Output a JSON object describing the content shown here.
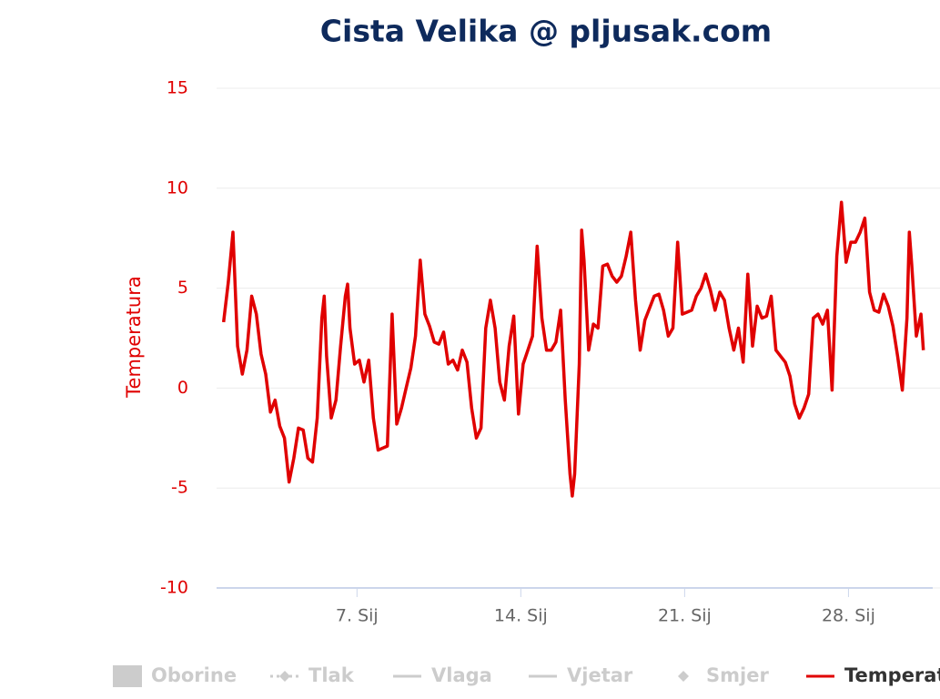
{
  "chart_data": {
    "type": "line",
    "title": "Cista Velika @ pljusak.com",
    "y_label": "Temperatura",
    "x": [
      1.3,
      1.5,
      1.7,
      1.9,
      2.1,
      2.3,
      2.5,
      2.7,
      2.9,
      3.1,
      3.3,
      3.5,
      3.7,
      3.9,
      4.1,
      4.3,
      4.5,
      4.7,
      4.9,
      5.1,
      5.3,
      5.5,
      5.6,
      5.7,
      5.9,
      6.1,
      6.3,
      6.5,
      6.6,
      6.7,
      6.9,
      7.1,
      7.3,
      7.5,
      7.7,
      7.9,
      8.1,
      8.3,
      8.5,
      8.7,
      8.9,
      9.1,
      9.3,
      9.5,
      9.7,
      9.9,
      10.1,
      10.3,
      10.5,
      10.7,
      10.9,
      11.1,
      11.3,
      11.5,
      11.7,
      11.9,
      12.1,
      12.3,
      12.5,
      12.7,
      12.9,
      13.1,
      13.3,
      13.5,
      13.7,
      13.9,
      14.1,
      14.3,
      14.5,
      14.7,
      14.9,
      15.1,
      15.3,
      15.5,
      15.7,
      15.9,
      16.1,
      16.2,
      16.3,
      16.5,
      16.6,
      16.7,
      16.9,
      17.1,
      17.3,
      17.5,
      17.7,
      17.9,
      18.1,
      18.3,
      18.5,
      18.7,
      18.9,
      19.1,
      19.3,
      19.5,
      19.7,
      19.9,
      20.1,
      20.3,
      20.5,
      20.7,
      20.9,
      21.1,
      21.3,
      21.5,
      21.7,
      21.9,
      22.1,
      22.3,
      22.5,
      22.7,
      22.9,
      23.1,
      23.3,
      23.5,
      23.7,
      23.9,
      24.1,
      24.3,
      24.5,
      24.7,
      24.9,
      25.1,
      25.3,
      25.5,
      25.7,
      25.9,
      26.1,
      26.3,
      26.5,
      26.7,
      26.9,
      27.1,
      27.3,
      27.5,
      27.7,
      27.9,
      28.1,
      28.3,
      28.5,
      28.7,
      28.9,
      29.1,
      29.3,
      29.5,
      29.7,
      29.9,
      30.1,
      30.3,
      30.5,
      30.6,
      30.7,
      30.9,
      31.1,
      31.2
    ],
    "series": [
      {
        "name": "Temperatura",
        "color": "#e00000",
        "values": [
          3.3,
          5.3,
          7.8,
          2.1,
          0.7,
          1.9,
          4.6,
          3.7,
          1.7,
          0.7,
          -1.2,
          -0.6,
          -1.9,
          -2.5,
          -4.7,
          -3.5,
          -2.0,
          -2.1,
          -3.5,
          -3.7,
          -1.5,
          3.5,
          4.6,
          1.6,
          -1.5,
          -0.6,
          2.1,
          4.6,
          5.2,
          3.0,
          1.2,
          1.4,
          0.3,
          1.4,
          -1.5,
          -3.1,
          -3.0,
          -2.9,
          3.7,
          -1.8,
          -1.0,
          0.0,
          1.0,
          2.6,
          6.4,
          3.7,
          3.1,
          2.3,
          2.2,
          2.8,
          1.2,
          1.4,
          0.9,
          1.9,
          1.3,
          -1.0,
          -2.5,
          -2.0,
          3.0,
          4.4,
          3.0,
          0.3,
          -0.6,
          2.1,
          3.6,
          -1.3,
          1.2,
          1.9,
          2.6,
          7.1,
          3.5,
          1.9,
          1.9,
          2.3,
          3.9,
          -0.6,
          -4.3,
          -5.4,
          -4.3,
          1.2,
          7.9,
          6.4,
          1.9,
          3.2,
          3.0,
          6.1,
          6.2,
          5.6,
          5.3,
          5.6,
          6.6,
          7.8,
          4.4,
          1.9,
          3.4,
          4.0,
          4.6,
          4.7,
          3.9,
          2.6,
          3.0,
          7.3,
          3.7,
          3.8,
          3.9,
          4.6,
          5.0,
          5.7,
          4.9,
          3.9,
          4.8,
          4.4,
          3.0,
          1.9,
          3.0,
          1.3,
          5.7,
          2.1,
          4.1,
          3.5,
          3.6,
          4.6,
          1.9,
          1.6,
          1.3,
          0.6,
          -0.8,
          -1.5,
          -1.0,
          -0.3,
          3.5,
          3.7,
          3.2,
          3.9,
          -0.1,
          6.6,
          9.3,
          6.3,
          7.3,
          7.3,
          7.8,
          8.5,
          4.8,
          3.9,
          3.8,
          4.7,
          4.1,
          3.1,
          1.6,
          -0.1,
          3.5,
          7.8,
          6.2,
          2.6,
          3.7,
          1.9
        ]
      }
    ],
    "legend_hidden": [
      {
        "name": "Oborine",
        "symbol": "box"
      },
      {
        "name": "Tlak",
        "symbol": "dash-diamond"
      },
      {
        "name": "Vlaga",
        "symbol": "line"
      },
      {
        "name": "Vjetar",
        "symbol": "line"
      },
      {
        "name": "Smjer",
        "symbol": "diamond"
      }
    ],
    "hidden_color": "#cccccc",
    "xlim": [
      1,
      31.6
    ],
    "xticks": [
      {
        "value": 7,
        "label": "7. Sij"
      },
      {
        "value": 14,
        "label": "14. Sij"
      },
      {
        "value": 21,
        "label": "21. Sij"
      },
      {
        "value": 28,
        "label": "28. Sij"
      }
    ],
    "ylim": [
      -10,
      15
    ],
    "yticks": [
      -10,
      -5,
      0,
      5,
      10,
      15
    ],
    "grid": true
  }
}
